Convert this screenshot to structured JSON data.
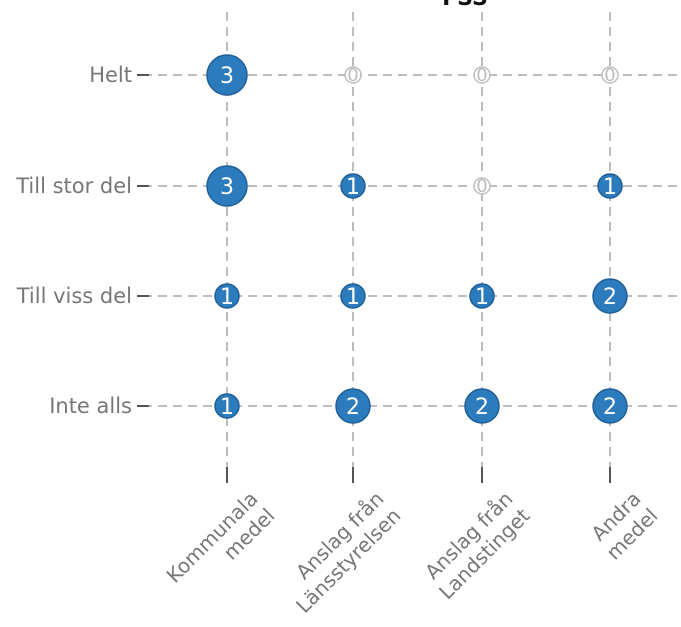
{
  "chart_data": {
    "type": "bubble",
    "title": "FSS",
    "x_categories": [
      [
        "Kommunala",
        "medel"
      ],
      [
        "Anslag från",
        "Länsstyrelsen"
      ],
      [
        "Anslag från",
        "Landstinget"
      ],
      [
        "Andra",
        "medel"
      ]
    ],
    "y_categories": [
      "Helt",
      "Till stor del",
      "Till viss del",
      "Inte alls"
    ],
    "values": [
      [
        3,
        0,
        0,
        0
      ],
      [
        3,
        1,
        0,
        1
      ],
      [
        1,
        1,
        1,
        2
      ],
      [
        1,
        2,
        2,
        2
      ]
    ],
    "colors": {
      "bubble": "#2c7bbd",
      "grid": "#bdbdbd",
      "text": "#777777"
    },
    "grid": true
  }
}
